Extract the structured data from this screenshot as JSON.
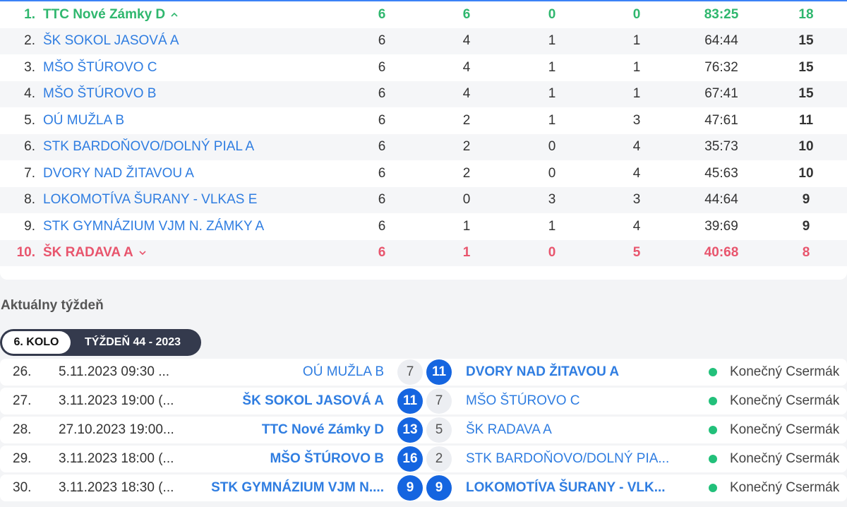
{
  "colors": {
    "accent": "#2f7de1",
    "promotion": "#2fb76e",
    "relegation": "#e8556d",
    "winner_badge": "#1565e0",
    "final_dot": "#22c07a"
  },
  "standings": [
    {
      "rank": "1.",
      "team": "TTC Nové Zámky D",
      "played": "6",
      "won": "6",
      "drawn": "0",
      "lost": "0",
      "score": "83:25",
      "points": "18",
      "zone": "up",
      "icon": "chevron-up-icon"
    },
    {
      "rank": "2.",
      "team": "ŠK SOKOL JASOVÁ A",
      "played": "6",
      "won": "4",
      "drawn": "1",
      "lost": "1",
      "score": "64:44",
      "points": "15"
    },
    {
      "rank": "3.",
      "team": "MŠO ŠTÚROVO C",
      "played": "6",
      "won": "4",
      "drawn": "1",
      "lost": "1",
      "score": "76:32",
      "points": "15"
    },
    {
      "rank": "4.",
      "team": "MŠO ŠTÚROVO B",
      "played": "6",
      "won": "4",
      "drawn": "1",
      "lost": "1",
      "score": "67:41",
      "points": "15"
    },
    {
      "rank": "5.",
      "team": "OÚ MUŽLA B",
      "played": "6",
      "won": "2",
      "drawn": "1",
      "lost": "3",
      "score": "47:61",
      "points": "11"
    },
    {
      "rank": "6.",
      "team": "STK BARDOŇOVO/DOLNÝ PIAL A",
      "played": "6",
      "won": "2",
      "drawn": "0",
      "lost": "4",
      "score": "35:73",
      "points": "10"
    },
    {
      "rank": "7.",
      "team": "DVORY NAD ŽITAVOU A",
      "played": "6",
      "won": "2",
      "drawn": "0",
      "lost": "4",
      "score": "45:63",
      "points": "10"
    },
    {
      "rank": "8.",
      "team": "LOKOMOTÍVA ŠURANY - VLKAS E",
      "played": "6",
      "won": "0",
      "drawn": "3",
      "lost": "3",
      "score": "44:64",
      "points": "9"
    },
    {
      "rank": "9.",
      "team": "STK GYMNÁZIUM VJM N. ZÁMKY A",
      "played": "6",
      "won": "1",
      "drawn": "1",
      "lost": "4",
      "score": "39:69",
      "points": "9"
    },
    {
      "rank": "10.",
      "team": "ŠK RADAVA A",
      "played": "6",
      "won": "1",
      "drawn": "0",
      "lost": "5",
      "score": "40:68",
      "points": "8",
      "zone": "down",
      "icon": "chevron-down-icon"
    }
  ],
  "week": {
    "title": "Aktuálny týždeň",
    "round_label": "6. KOLO",
    "week_label": "TÝŽDEŇ 44 - 2023"
  },
  "matches": [
    {
      "no": "26.",
      "date": "5.11.2023 09:30 ...",
      "home": "OÚ MUŽLA B",
      "home_score": "7",
      "away_score": "11",
      "away": "DVORY NAD ŽITAVOU A",
      "winner": "away",
      "status": "Konečný Csermák"
    },
    {
      "no": "27.",
      "date": "3.11.2023 19:00 (...",
      "home": "ŠK SOKOL JASOVÁ A",
      "home_score": "11",
      "away_score": "7",
      "away": "MŠO ŠTÚROVO C",
      "winner": "home",
      "status": "Konečný Csermák"
    },
    {
      "no": "28.",
      "date": "27.10.2023 19:00...",
      "home": "TTC Nové Zámky D",
      "home_score": "13",
      "away_score": "5",
      "away": "ŠK RADAVA A",
      "winner": "home",
      "status": "Konečný Csermák"
    },
    {
      "no": "29.",
      "date": "3.11.2023 18:00 (...",
      "home": "MŠO ŠTÚROVO B",
      "home_score": "16",
      "away_score": "2",
      "away": "STK BARDOŇOVO/DOLNÝ PIA...",
      "winner": "home",
      "status": "Konečný Csermák"
    },
    {
      "no": "30.",
      "date": "3.11.2023 18:30 (...",
      "home": "STK GYMNÁZIUM VJM N....",
      "home_score": "9",
      "away_score": "9",
      "away": "LOKOMOTÍVA ŠURANY - VLK...",
      "winner": "draw",
      "status": "Konečný Csermák"
    }
  ]
}
